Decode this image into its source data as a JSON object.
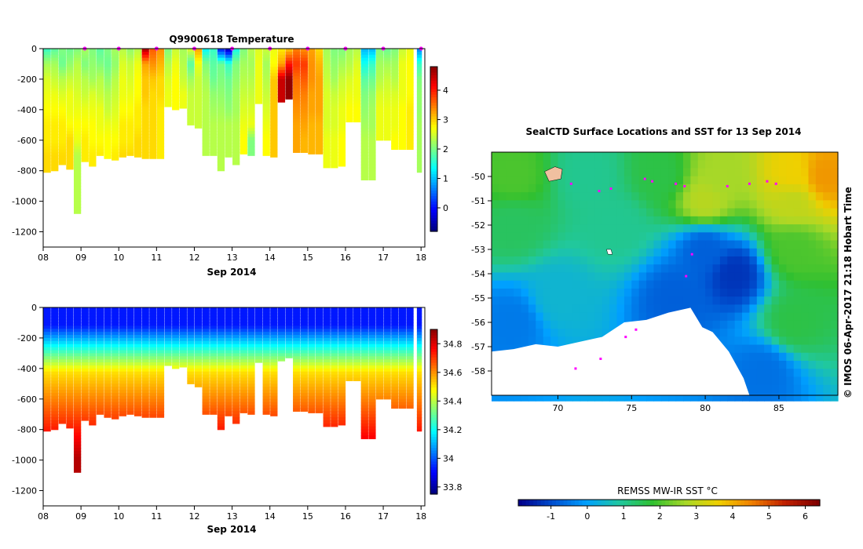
{
  "colors": {
    "cmap_jet": [
      "#00007f",
      "#0000ff",
      "#007fff",
      "#00ffff",
      "#7fff7f",
      "#ffff00",
      "#ff7f00",
      "#ff0000",
      "#7f0000"
    ],
    "cmap_sst": [
      "#00008b",
      "#0050d0",
      "#00a0ff",
      "#20c8a0",
      "#30c030",
      "#a8d828",
      "#f0d000",
      "#f08000",
      "#c02000",
      "#800000"
    ],
    "land": "#ffffff",
    "track": "#ff00ff"
  },
  "chart_data": [
    {
      "type": "heatmap",
      "title": "Q9900618  Temperature",
      "xlabel": "Sep 2014",
      "ylabel": "",
      "x_ticks": [
        "08",
        "09",
        "10",
        "11",
        "12",
        "13",
        "14",
        "15",
        "16",
        "17",
        "18"
      ],
      "y_ticks": [
        "0",
        "-200",
        "-400",
        "-600",
        "-800",
        "-1000",
        "-1200"
      ],
      "xlim": [
        8,
        18.1
      ],
      "ylim": [
        -1300,
        0
      ],
      "colorbar": {
        "ticks": [
          "0",
          "1",
          "2",
          "3",
          "4"
        ],
        "range": [
          -0.8,
          4.8
        ]
      },
      "profile_markers_x": [
        9.1,
        10,
        11,
        12,
        13,
        14,
        15,
        16,
        17,
        18
      ],
      "profiles": [
        {
          "t": 8.1,
          "w": 0.18,
          "depth": 810,
          "v": [
            1.6,
            2.2,
            2.5,
            2.6,
            2.7,
            2.8,
            2.8,
            2.9
          ]
        },
        {
          "t": 8.3,
          "w": 0.18,
          "depth": 800,
          "v": [
            1.8,
            2.2,
            2.4,
            2.6,
            2.7,
            2.8,
            2.8,
            2.9
          ]
        },
        {
          "t": 8.5,
          "w": 0.18,
          "depth": 760,
          "v": [
            2.0,
            1.9,
            2.3,
            2.5,
            2.7,
            2.8,
            2.8,
            2.9
          ]
        },
        {
          "t": 8.7,
          "w": 0.18,
          "depth": 790,
          "v": [
            1.9,
            2.1,
            2.4,
            2.6,
            2.6,
            2.7,
            2.9,
            2.9
          ]
        },
        {
          "t": 8.9,
          "w": 0.18,
          "depth": 1080,
          "v": [
            2.0,
            2.3,
            2.4,
            2.5,
            2.6,
            2.7,
            2.6,
            2.3
          ]
        },
        {
          "t": 9.1,
          "w": 0.18,
          "depth": 740,
          "v": [
            2.2,
            2.0,
            2.3,
            2.4,
            2.6,
            2.7,
            2.8,
            2.8
          ]
        },
        {
          "t": 9.3,
          "w": 0.18,
          "depth": 770,
          "v": [
            2.0,
            2.1,
            2.2,
            2.5,
            2.6,
            2.7,
            2.7,
            2.8
          ]
        },
        {
          "t": 9.5,
          "w": 0.18,
          "depth": 700,
          "v": [
            1.8,
            2.0,
            2.3,
            2.4,
            2.6,
            2.6,
            2.7,
            2.8
          ]
        },
        {
          "t": 9.7,
          "w": 0.18,
          "depth": 720,
          "v": [
            2.0,
            1.9,
            2.1,
            2.3,
            2.4,
            2.6,
            2.7,
            2.7
          ]
        },
        {
          "t": 9.9,
          "w": 0.18,
          "depth": 730,
          "v": [
            2.2,
            2.1,
            2.3,
            2.4,
            2.5,
            2.6,
            2.7,
            2.8
          ]
        },
        {
          "t": 10.1,
          "w": 0.18,
          "depth": 710,
          "v": [
            2.3,
            2.5,
            2.6,
            2.6,
            2.7,
            2.8,
            2.8,
            2.9
          ]
        },
        {
          "t": 10.3,
          "w": 0.18,
          "depth": 700,
          "v": [
            2.1,
            2.4,
            2.5,
            2.6,
            2.7,
            2.8,
            2.8,
            2.9
          ]
        },
        {
          "t": 10.5,
          "w": 0.18,
          "depth": 710,
          "v": [
            2.3,
            2.6,
            2.7,
            2.7,
            2.8,
            2.8,
            2.9,
            2.9
          ]
        },
        {
          "t": 10.7,
          "w": 0.18,
          "depth": 720,
          "v": [
            4.6,
            3.2,
            3.0,
            3.0,
            2.9,
            2.9,
            2.9,
            2.9
          ]
        },
        {
          "t": 10.9,
          "w": 0.18,
          "depth": 720,
          "v": [
            3.6,
            3.3,
            3.0,
            2.9,
            2.9,
            2.9,
            2.9,
            2.9
          ]
        },
        {
          "t": 11.1,
          "w": 0.18,
          "depth": 720,
          "v": [
            3.3,
            3.1,
            2.9,
            2.9,
            2.8,
            2.8,
            2.8,
            2.8
          ]
        },
        {
          "t": 11.3,
          "w": 0.18,
          "depth": 380,
          "v": [
            2.0,
            2.3,
            2.5,
            2.6
          ]
        },
        {
          "t": 11.5,
          "w": 0.18,
          "depth": 400,
          "v": [
            2.4,
            2.6,
            2.7,
            2.7
          ]
        },
        {
          "t": 11.7,
          "w": 0.18,
          "depth": 390,
          "v": [
            2.2,
            2.3,
            2.4,
            2.6
          ]
        },
        {
          "t": 11.9,
          "w": 0.18,
          "depth": 500,
          "v": [
            2.5,
            1.8,
            2.2,
            2.4
          ]
        },
        {
          "t": 12.1,
          "w": 0.18,
          "depth": 520,
          "v": [
            3.2,
            2.6,
            2.4,
            2.4,
            2.4
          ]
        },
        {
          "t": 12.3,
          "w": 0.18,
          "depth": 700,
          "v": [
            1.3,
            2.0,
            2.2,
            2.3,
            2.3,
            2.3,
            2.3
          ]
        },
        {
          "t": 12.5,
          "w": 0.18,
          "depth": 700,
          "v": [
            1.6,
            1.8,
            1.9,
            2.1,
            2.2,
            2.3,
            2.3
          ]
        },
        {
          "t": 12.7,
          "w": 0.18,
          "depth": 800,
          "v": [
            0.0,
            1.9,
            2.0,
            2.1,
            2.2,
            2.3,
            2.3,
            2.3
          ]
        },
        {
          "t": 12.9,
          "w": 0.18,
          "depth": 710,
          "v": [
            -0.5,
            1.6,
            1.9,
            2.0,
            2.1,
            2.3,
            2.3
          ]
        },
        {
          "t": 13.1,
          "w": 0.18,
          "depth": 760,
          "v": [
            1.4,
            2.0,
            2.1,
            2.2,
            2.2,
            2.3,
            2.3
          ]
        },
        {
          "t": 13.3,
          "w": 0.18,
          "depth": 690,
          "v": [
            2.0,
            2.2,
            2.3,
            2.4,
            2.5,
            2.6,
            2.7
          ]
        },
        {
          "t": 13.5,
          "w": 0.18,
          "depth": 700,
          "v": [
            2.3,
            2.2,
            2.3,
            2.4,
            2.5,
            2.6,
            2.0
          ]
        },
        {
          "t": 13.7,
          "w": 0.18,
          "depth": 360,
          "v": [
            2.5,
            2.6,
            2.6
          ]
        },
        {
          "t": 13.9,
          "w": 0.18,
          "depth": 700,
          "v": [
            2.4,
            2.2,
            2.3,
            2.4,
            2.5,
            2.6,
            2.7
          ]
        },
        {
          "t": 14.1,
          "w": 0.18,
          "depth": 710,
          "v": [
            2.6,
            2.7,
            3.0,
            3.0,
            3.0,
            3.0,
            3.0
          ]
        },
        {
          "t": 14.3,
          "w": 0.18,
          "depth": 350,
          "v": [
            2.8,
            3.2,
            4.4
          ]
        },
        {
          "t": 14.5,
          "w": 0.18,
          "depth": 330,
          "v": [
            3.0,
            4.0,
            4.7
          ]
        },
        {
          "t": 14.7,
          "w": 0.18,
          "depth": 680,
          "v": [
            3.4,
            3.8,
            3.5,
            3.4,
            3.3,
            3.2,
            3.2
          ]
        },
        {
          "t": 14.9,
          "w": 0.18,
          "depth": 680,
          "v": [
            3.3,
            3.8,
            3.6,
            3.4,
            3.3,
            3.2,
            3.1
          ]
        },
        {
          "t": 15.1,
          "w": 0.18,
          "depth": 690,
          "v": [
            3.2,
            3.3,
            3.3,
            3.2,
            3.2,
            3.1,
            3.1
          ]
        },
        {
          "t": 15.3,
          "w": 0.18,
          "depth": 690,
          "v": [
            2.9,
            3.1,
            3.2,
            3.2,
            3.2,
            3.1,
            3.1
          ]
        },
        {
          "t": 15.5,
          "w": 0.18,
          "depth": 780,
          "v": [
            2.2,
            2.3,
            2.4,
            2.5,
            2.5,
            2.5,
            2.6,
            2.6
          ]
        },
        {
          "t": 15.7,
          "w": 0.18,
          "depth": 780,
          "v": [
            2.0,
            2.1,
            2.2,
            2.4,
            2.5,
            2.5,
            2.6,
            2.6
          ]
        },
        {
          "t": 15.9,
          "w": 0.18,
          "depth": 770,
          "v": [
            2.0,
            2.2,
            2.4,
            2.5,
            2.6,
            2.6,
            2.7,
            2.7
          ]
        },
        {
          "t": 16.1,
          "w": 0.18,
          "depth": 480,
          "v": [
            2.2,
            2.3,
            2.5,
            2.6,
            2.7
          ]
        },
        {
          "t": 16.3,
          "w": 0.18,
          "depth": 480,
          "v": [
            2.3,
            2.5,
            2.6,
            2.6,
            2.7
          ]
        },
        {
          "t": 16.5,
          "w": 0.18,
          "depth": 860,
          "v": [
            0.9,
            1.4,
            1.8,
            2.0,
            2.1,
            2.2,
            2.3,
            2.3,
            2.3
          ]
        },
        {
          "t": 16.7,
          "w": 0.18,
          "depth": 860,
          "v": [
            0.9,
            1.6,
            1.9,
            2.1,
            2.2,
            2.2,
            2.3,
            2.3,
            2.3
          ]
        },
        {
          "t": 16.9,
          "w": 0.18,
          "depth": 600,
          "v": [
            2.0,
            2.2,
            2.3,
            2.5,
            2.6,
            2.6
          ]
        },
        {
          "t": 17.1,
          "w": 0.18,
          "depth": 600,
          "v": [
            1.9,
            2.2,
            2.4,
            2.5,
            2.6,
            2.6
          ]
        },
        {
          "t": 17.3,
          "w": 0.18,
          "depth": 660,
          "v": [
            2.0,
            2.2,
            2.3,
            2.5,
            2.6,
            2.6,
            2.7
          ]
        },
        {
          "t": 17.5,
          "w": 0.18,
          "depth": 660,
          "v": [
            2.4,
            2.6,
            2.6,
            2.6,
            2.7,
            2.7,
            2.7
          ]
        },
        {
          "t": 17.7,
          "w": 0.18,
          "depth": 660,
          "v": [
            2.6,
            2.7,
            2.7,
            2.7,
            2.8,
            2.8,
            2.8
          ]
        },
        {
          "t": 17.95,
          "w": 0.12,
          "depth": 810,
          "v": [
            0.6,
            1.6,
            2.0,
            2.1,
            2.1,
            2.2,
            2.2,
            2.2
          ]
        }
      ]
    },
    {
      "type": "heatmap",
      "title": "",
      "xlabel": "Sep 2014",
      "ylabel": "",
      "x_ticks": [
        "08",
        "09",
        "10",
        "11",
        "12",
        "13",
        "14",
        "15",
        "16",
        "17",
        "18"
      ],
      "y_ticks": [
        "0",
        "-200",
        "-400",
        "-600",
        "-800",
        "-1000",
        "-1200"
      ],
      "xlim": [
        8,
        18.1
      ],
      "ylim": [
        -1300,
        0
      ],
      "colorbar": {
        "ticks": [
          "33.8",
          "34",
          "34.2",
          "34.4",
          "34.6",
          "34.8"
        ],
        "range": [
          33.75,
          34.9
        ]
      },
      "profile_depths": [
        810,
        800,
        760,
        790,
        1080,
        740,
        770,
        700,
        720,
        730,
        710,
        700,
        710,
        720,
        720,
        720,
        380,
        400,
        390,
        500,
        520,
        700,
        700,
        800,
        710,
        760,
        690,
        700,
        360,
        700,
        710,
        350,
        330,
        680,
        680,
        690,
        690,
        780,
        780,
        770,
        480,
        480,
        860,
        860,
        600,
        600,
        660,
        660,
        660,
        810
      ]
    },
    {
      "type": "heatmap",
      "title": "SealCTD Surface Locations and SST for 13 Sep 2014",
      "xlabel": "",
      "ylabel": "",
      "x_ticks": [
        "70",
        "75",
        "80",
        "85"
      ],
      "y_ticks": [
        "-50",
        "-51",
        "-52",
        "-53",
        "-54",
        "-55",
        "-56",
        "-57",
        "-58"
      ],
      "xlim": [
        65.5,
        89
      ],
      "ylim": [
        -59,
        -49
      ],
      "colorbar_label": "REMSS MW-IR SST °C",
      "colorbar": {
        "ticks": [
          "-1",
          "0",
          "1",
          "2",
          "3",
          "4",
          "5",
          "6"
        ],
        "range": [
          -1.9,
          6.4
        ]
      },
      "sst_field_description_points": [
        {
          "lon": 67,
          "lat": -50,
          "sst": 2.0
        },
        {
          "lon": 72,
          "lat": -50,
          "sst": 1.0
        },
        {
          "lon": 77,
          "lat": -50,
          "sst": 1.6
        },
        {
          "lon": 81,
          "lat": -50,
          "sst": 2.7
        },
        {
          "lon": 86,
          "lat": -50,
          "sst": 3.6
        },
        {
          "lon": 88,
          "lat": -50,
          "sst": 4.3
        },
        {
          "lon": 80,
          "lat": -51,
          "sst": 2.9
        },
        {
          "lon": 86,
          "lat": -51,
          "sst": 3.0
        },
        {
          "lon": 67,
          "lat": -52,
          "sst": 1.4
        },
        {
          "lon": 74,
          "lat": -52,
          "sst": 1.0
        },
        {
          "lon": 80,
          "lat": -53,
          "sst": -0.8
        },
        {
          "lon": 82,
          "lat": -54,
          "sst": -1.3
        },
        {
          "lon": 86,
          "lat": -53,
          "sst": 2.0
        },
        {
          "lon": 70,
          "lat": -55,
          "sst": 0.4
        },
        {
          "lon": 67,
          "lat": -56,
          "sst": -0.5
        },
        {
          "lon": 78,
          "lat": -55,
          "sst": -0.8
        },
        {
          "lon": 86,
          "lat": -56,
          "sst": 1.6
        },
        {
          "lon": 84,
          "lat": -58,
          "sst": -0.6
        }
      ],
      "annotation": "© IMOS 06-Apr-2017 21:18 Hobart Time"
    }
  ]
}
